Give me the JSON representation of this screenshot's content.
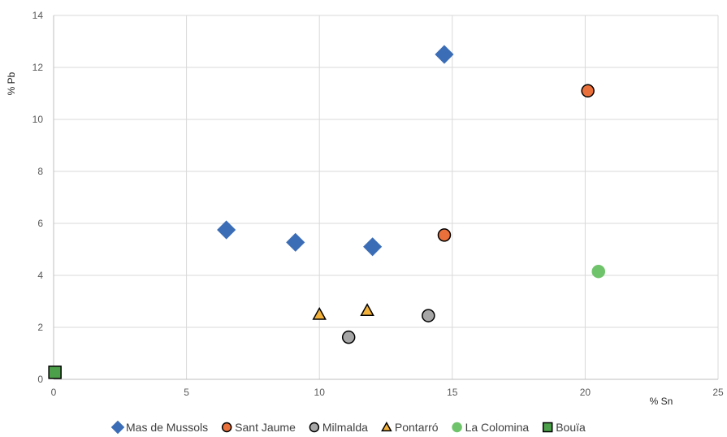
{
  "chart_data": {
    "type": "scatter",
    "title": "",
    "xlabel": "% Sn",
    "ylabel": "% Pb",
    "xlim": [
      0,
      25
    ],
    "ylim": [
      0,
      14
    ],
    "x_ticks": [
      0,
      5,
      10,
      15,
      20,
      25
    ],
    "y_ticks": [
      0,
      2,
      4,
      6,
      8,
      10,
      12,
      14
    ],
    "grid": true,
    "legend_position": "bottom",
    "series": [
      {
        "name": "Mas de Mussols",
        "marker": "diamond",
        "fill": "#3B6DB7",
        "stroke": "#3B6DB7",
        "points": [
          [
            6.5,
            5.75
          ],
          [
            9.1,
            5.27
          ],
          [
            12.0,
            5.1
          ],
          [
            14.7,
            12.5
          ]
        ]
      },
      {
        "name": "Sant Jaume",
        "marker": "circle",
        "fill": "#E9703A",
        "stroke": "#000000",
        "points": [
          [
            14.7,
            5.55
          ],
          [
            20.1,
            11.1
          ]
        ]
      },
      {
        "name": "Milmalda",
        "marker": "circle",
        "fill": "#A6A6A6",
        "stroke": "#000000",
        "points": [
          [
            11.1,
            1.62
          ],
          [
            14.1,
            2.45
          ]
        ]
      },
      {
        "name": "Pontarró",
        "marker": "triangle",
        "fill": "#F2B13B",
        "stroke": "#000000",
        "points": [
          [
            10.0,
            2.5
          ],
          [
            11.8,
            2.65
          ]
        ]
      },
      {
        "name": "La Colomina",
        "marker": "circle",
        "fill": "#6FC46B",
        "stroke": "#6FC46B",
        "points": [
          [
            20.5,
            4.15
          ]
        ]
      },
      {
        "name": "Bouïa",
        "marker": "square",
        "fill": "#4CA049",
        "stroke": "#000000",
        "points": [
          [
            0.05,
            0.27
          ]
        ]
      }
    ]
  }
}
